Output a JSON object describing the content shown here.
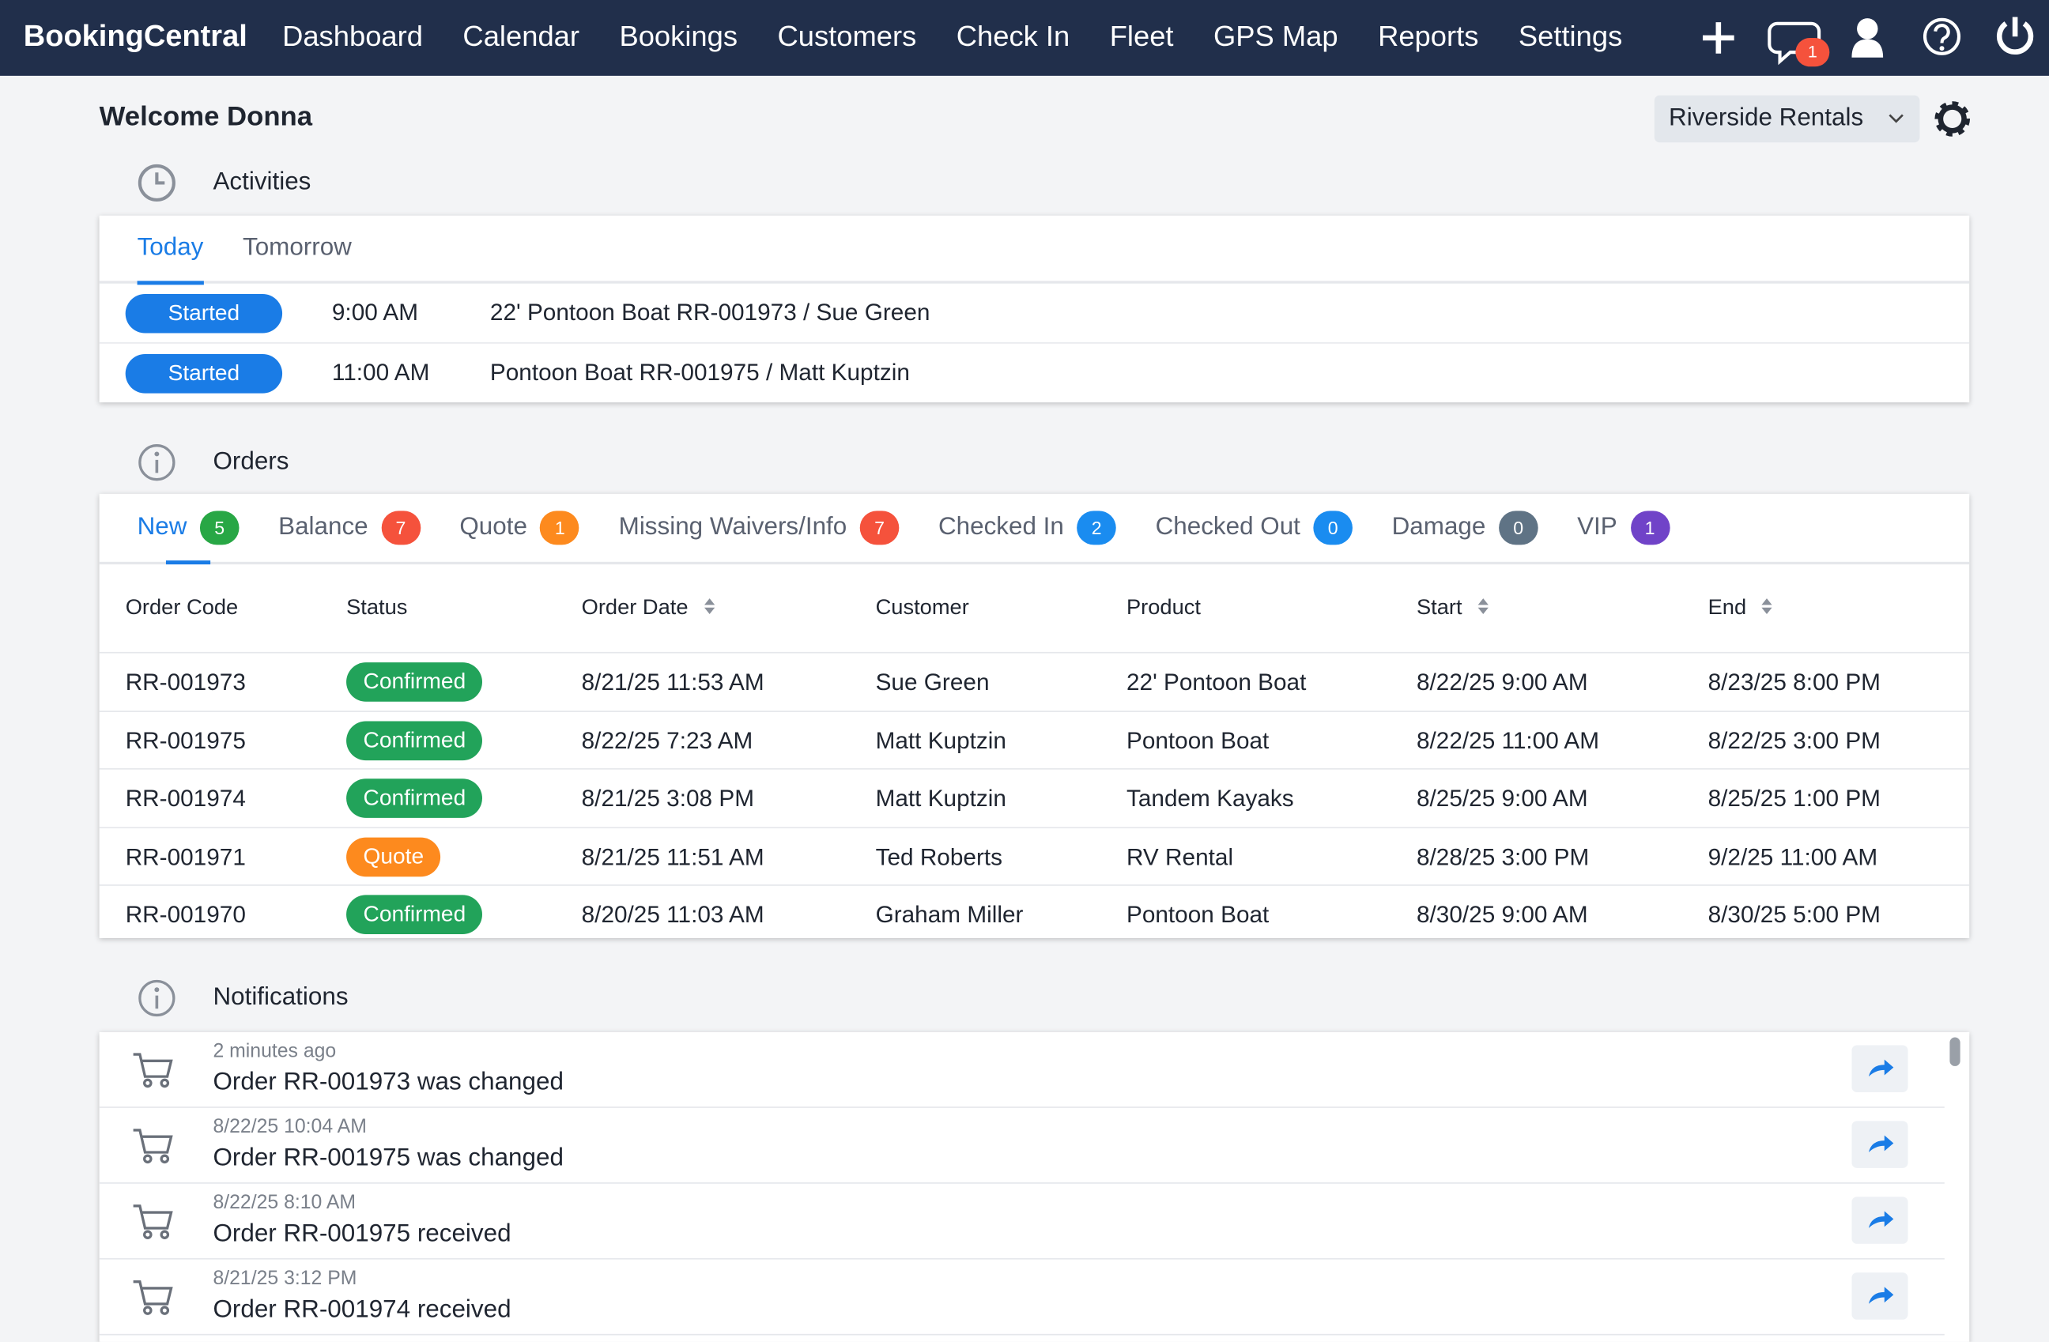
{
  "navbar": {
    "brand": "BookingCentral",
    "items": [
      "Dashboard",
      "Calendar",
      "Bookings",
      "Customers",
      "Check In",
      "Fleet",
      "GPS Map",
      "Reports",
      "Settings"
    ],
    "message_count": 1
  },
  "header": {
    "welcome": "Welcome Donna",
    "location": "Riverside Rentals"
  },
  "activities": {
    "title": "Activities",
    "tabs": [
      "Today",
      "Tomorrow"
    ],
    "active_tab": 0,
    "rows": [
      {
        "status": "Started",
        "time": "9:00 AM",
        "description": "22' Pontoon Boat RR-001973 / Sue Green"
      },
      {
        "status": "Started",
        "time": "11:00 AM",
        "description": "Pontoon Boat RR-001975 / Matt Kuptzin"
      }
    ]
  },
  "orders": {
    "title": "Orders",
    "active_tab": 0,
    "tabs": [
      {
        "label": "New",
        "count": 5,
        "color": "#28a745"
      },
      {
        "label": "Balance",
        "count": 7,
        "color": "#f5523c"
      },
      {
        "label": "Quote",
        "count": 1,
        "color": "#fd8a1e"
      },
      {
        "label": "Missing Waivers/Info",
        "count": 7,
        "color": "#f5523c"
      },
      {
        "label": "Checked In",
        "count": 2,
        "color": "#1a8cf0"
      },
      {
        "label": "Checked Out",
        "count": 0,
        "color": "#1a8cf0"
      },
      {
        "label": "Damage",
        "count": 0,
        "color": "#5f7385"
      },
      {
        "label": "VIP",
        "count": 1,
        "color": "#7043c8"
      }
    ],
    "columns": [
      {
        "label": "Order Code",
        "sortable": false
      },
      {
        "label": "Status",
        "sortable": false
      },
      {
        "label": "Order Date",
        "sortable": true
      },
      {
        "label": "Customer",
        "sortable": false
      },
      {
        "label": "Product",
        "sortable": false
      },
      {
        "label": "Start",
        "sortable": true
      },
      {
        "label": "End",
        "sortable": true
      }
    ],
    "rows": [
      {
        "order_code": "RR-001973",
        "status": "Confirmed",
        "status_color": "#22a35a",
        "order_date": "8/21/25 11:53 AM",
        "customer": "Sue Green",
        "product": "22' Pontoon Boat",
        "start": "8/22/25 9:00 AM",
        "end": "8/23/25 8:00 PM"
      },
      {
        "order_code": "RR-001975",
        "status": "Confirmed",
        "status_color": "#22a35a",
        "order_date": "8/22/25 7:23 AM",
        "customer": "Matt Kuptzin",
        "product": "Pontoon Boat",
        "start": "8/22/25 11:00 AM",
        "end": "8/22/25 3:00 PM"
      },
      {
        "order_code": "RR-001974",
        "status": "Confirmed",
        "status_color": "#22a35a",
        "order_date": "8/21/25 3:08 PM",
        "customer": "Matt Kuptzin",
        "product": "Tandem Kayaks",
        "start": "8/25/25 9:00 AM",
        "end": "8/25/25 1:00 PM"
      },
      {
        "order_code": "RR-001971",
        "status": "Quote",
        "status_color": "#fd8a1e",
        "order_date": "8/21/25 11:51 AM",
        "customer": "Ted Roberts",
        "product": "RV Rental",
        "start": "8/28/25 3:00 PM",
        "end": "9/2/25 11:00 AM"
      },
      {
        "order_code": "RR-001970",
        "status": "Confirmed",
        "status_color": "#22a35a",
        "order_date": "8/20/25 11:03 AM",
        "customer": "Graham Miller",
        "product": "Pontoon Boat",
        "start": "8/30/25 9:00 AM",
        "end": "8/30/25 5:00 PM"
      }
    ]
  },
  "notifications": {
    "title": "Notifications",
    "items": [
      {
        "time": "2 minutes ago",
        "text": "Order RR-001973 was changed"
      },
      {
        "time": "8/22/25 10:04 AM",
        "text": "Order RR-001975 was changed"
      },
      {
        "time": "8/22/25 8:10 AM",
        "text": "Order RR-001975 received"
      },
      {
        "time": "8/21/25 3:12 PM",
        "text": "Order RR-001974 received"
      }
    ]
  }
}
